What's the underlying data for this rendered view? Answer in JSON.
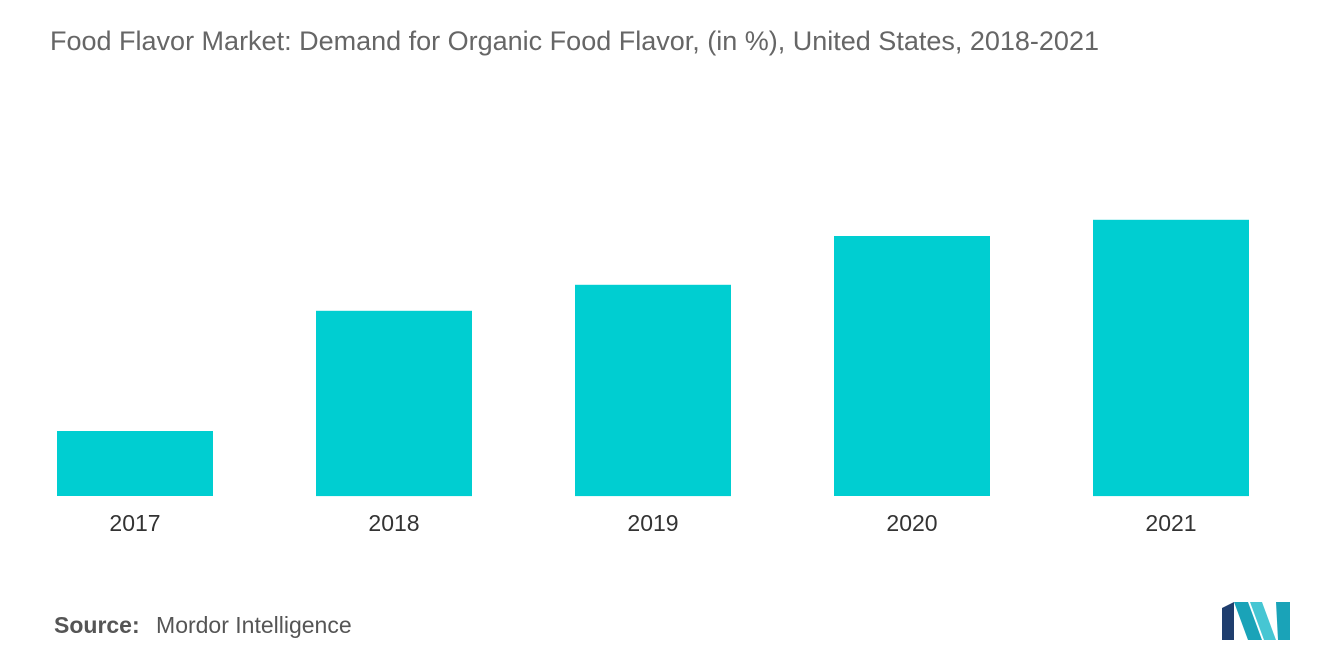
{
  "title": "Food Flavor Market: Demand for Organic Food Flavor, (in %), United States, 2018-2021",
  "source": {
    "label": "Source:",
    "value": "Mordor Intelligence"
  },
  "logo": {
    "icon": "mordor-intelligence-logo-icon",
    "colors": [
      "#1f3e6e",
      "#1aa3b8",
      "#46c6d3"
    ]
  },
  "colors": {
    "bar": "#00ced1",
    "tick_label": "#333333",
    "title": "#666666"
  },
  "chart_data": {
    "type": "bar",
    "title": "Food Flavor Market: Demand for Organic Food Flavor, (in %), United States, 2018-2021",
    "categories": [
      "2017",
      "2018",
      "2019",
      "2020",
      "2021"
    ],
    "values": [
      4.0,
      11.4,
      13.0,
      16.0,
      17.0
    ],
    "xlabel": "",
    "ylabel": "",
    "ylim": [
      0,
      20
    ],
    "grid": false,
    "legend": "none",
    "y_axis_visible": false
  }
}
